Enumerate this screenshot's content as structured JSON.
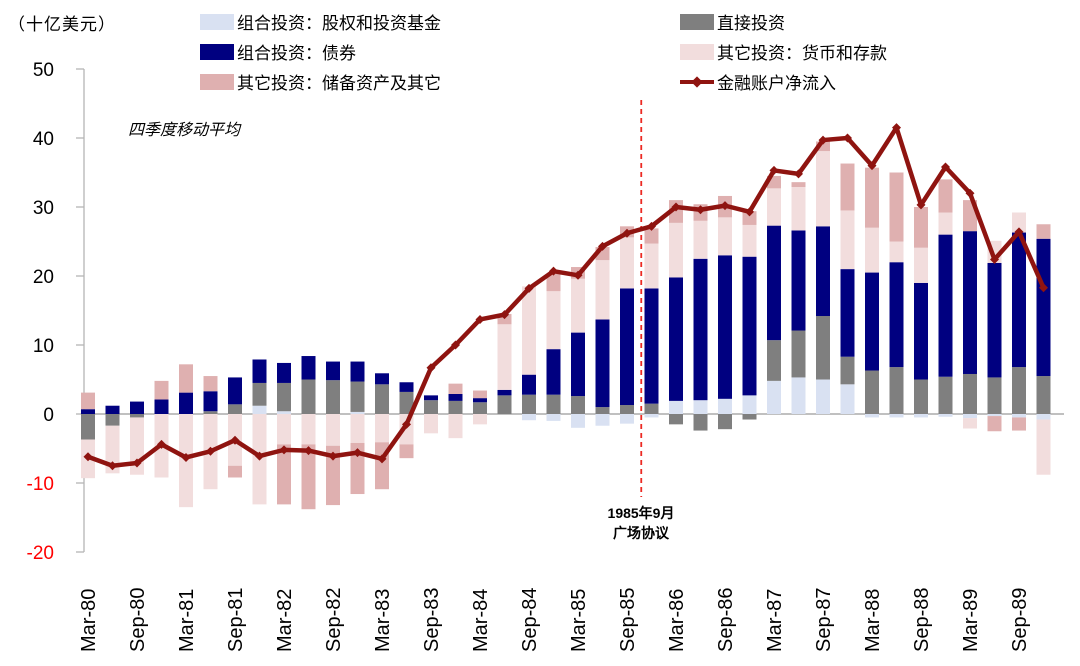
{
  "header": {
    "unit_label": "（十亿美元）"
  },
  "legend": {
    "items": [
      {
        "label": "组合投资：股权和投资基金",
        "color": "#d9e1f2",
        "type": "swatch"
      },
      {
        "label": "组合投资：债券",
        "color": "#000080",
        "type": "swatch"
      },
      {
        "label": "其它投资：储备资产及其它",
        "color": "#dfb0b0",
        "type": "swatch"
      },
      {
        "label": "直接投资",
        "color": "#7f7f7f",
        "type": "swatch"
      },
      {
        "label": "其它投资：货币和存款",
        "color": "#f2dddd",
        "type": "swatch"
      },
      {
        "label": "金融账户净流入",
        "color": "#8f1410",
        "type": "line"
      }
    ]
  },
  "annotations": {
    "moving_average": "四季度移动平均",
    "plaza_line1": "1985年9月",
    "plaza_line2": "广场协议",
    "plaza_event_position": "Sep-85",
    "dashed_line_color": "#ec2a23"
  },
  "y_axis": {
    "ticks": [
      50,
      40,
      30,
      20,
      10,
      0,
      -10,
      -20
    ],
    "positive_color": "#000000",
    "negative_color": "#ff0000"
  },
  "chart_data": {
    "type": "bar",
    "subtype": "stacked-bars-with-line",
    "title": "",
    "xlabel": "",
    "ylabel": "（十亿美元）",
    "ylim": [
      -20,
      50
    ],
    "grid": "zero-line-only",
    "legend_position": "top",
    "stack_order": [
      "equity",
      "direct",
      "bonds",
      "currency",
      "reserve"
    ],
    "series_names": {
      "equity": "组合投资：股权和投资基金",
      "bonds": "组合投资：债券",
      "reserve": "其它投资：储备资产及其它",
      "direct": "直接投资",
      "currency": "其它投资：货币和存款",
      "net": "金融账户净流入"
    },
    "series_colors": {
      "equity": "#d9e1f2",
      "bonds": "#000080",
      "reserve": "#dfb0b0",
      "direct": "#7f7f7f",
      "currency": "#f2dddd",
      "net": "#8f1410"
    },
    "x_tick_labels": [
      "Mar-80",
      "Sep-80",
      "Mar-81",
      "Sep-81",
      "Mar-82",
      "Sep-82",
      "Mar-83",
      "Sep-83",
      "Mar-84",
      "Sep-84",
      "Mar-85",
      "Sep-85",
      "Mar-86",
      "Sep-86",
      "Mar-87",
      "Sep-87",
      "Mar-88",
      "Sep-88",
      "Mar-89",
      "Sep-89"
    ],
    "quarters": [
      {
        "q": "Mar-80",
        "equity": 0,
        "bonds": 0.7,
        "direct": -3.7,
        "currency": -5.6,
        "reserve": 2.4,
        "net": -6.2
      },
      {
        "q": "Jun-80",
        "equity": 0,
        "bonds": 1.2,
        "direct": -1.7,
        "currency": -6.9,
        "reserve": 0,
        "net": -7.5
      },
      {
        "q": "Sep-80",
        "equity": 0,
        "bonds": 1.8,
        "direct": -0.5,
        "currency": -8.3,
        "reserve": 0,
        "net": -7.1
      },
      {
        "q": "Dec-80",
        "equity": 0,
        "bonds": 2.1,
        "direct": 0,
        "currency": -9.2,
        "reserve": 2.7,
        "net": -4.4
      },
      {
        "q": "Mar-81",
        "equity": 0,
        "bonds": 3.1,
        "direct": 0,
        "currency": -13.5,
        "reserve": 4.1,
        "net": -6.3
      },
      {
        "q": "Jun-81",
        "equity": 0,
        "bonds": 2.9,
        "direct": 0.4,
        "currency": -10.9,
        "reserve": 2.2,
        "net": -5.4
      },
      {
        "q": "Sep-81",
        "equity": 0,
        "bonds": 3.9,
        "direct": 1.4,
        "currency": -7.5,
        "reserve": -1.7,
        "net": -3.8
      },
      {
        "q": "Dec-81",
        "equity": 1.2,
        "bonds": 3.4,
        "direct": 3.3,
        "currency": -13.1,
        "reserve": 0,
        "net": -6.1
      },
      {
        "q": "Mar-82",
        "equity": 0.4,
        "bonds": 2.9,
        "direct": 4.1,
        "currency": -4.4,
        "reserve": -8.7,
        "net": -5.2
      },
      {
        "q": "Jun-82",
        "equity": 0,
        "bonds": 3.4,
        "direct": 5.0,
        "currency": -4.4,
        "reserve": -9.4,
        "net": -5.3
      },
      {
        "q": "Sep-82",
        "equity": 0,
        "bonds": 2.7,
        "direct": 4.9,
        "currency": -4.6,
        "reserve": -8.6,
        "net": -6.1
      },
      {
        "q": "Dec-82",
        "equity": 0.3,
        "bonds": 2.9,
        "direct": 4.4,
        "currency": -4.2,
        "reserve": -7.4,
        "net": -5.6
      },
      {
        "q": "Mar-83",
        "equity": 0,
        "bonds": 1.6,
        "direct": 4.3,
        "currency": -4.1,
        "reserve": -6.8,
        "net": -6.5
      },
      {
        "q": "Jun-83",
        "equity": 0,
        "bonds": 1.4,
        "direct": 3.2,
        "currency": -4.4,
        "reserve": -2.0,
        "net": -1.5
      },
      {
        "q": "Sep-83",
        "equity": 0,
        "bonds": 0.7,
        "direct": 2.0,
        "currency": -2.8,
        "reserve": 0,
        "net": 6.7
      },
      {
        "q": "Dec-83",
        "equity": 0,
        "bonds": 1.0,
        "direct": 1.9,
        "currency": -3.5,
        "reserve": 1.5,
        "net": 10.0
      },
      {
        "q": "Mar-84",
        "equity": 0,
        "bonds": 0.6,
        "direct": 1.7,
        "currency": -1.5,
        "reserve": 1.1,
        "net": 13.7
      },
      {
        "q": "Jun-84",
        "equity": 0,
        "bonds": 0.8,
        "direct": 2.7,
        "currency": 9.5,
        "reserve": 1.5,
        "net": 14.4
      },
      {
        "q": "Sep-84",
        "equity": -0.9,
        "bonds": 2.9,
        "direct": 2.8,
        "currency": 12.8,
        "reserve": 0,
        "net": 18.2
      },
      {
        "q": "Dec-84",
        "equity": -1.0,
        "bonds": 6.6,
        "direct": 2.8,
        "currency": 8.4,
        "reserve": 2.5,
        "net": 20.7
      },
      {
        "q": "Mar-85",
        "equity": -2.0,
        "bonds": 9.2,
        "direct": 2.6,
        "currency": 7.8,
        "reserve": 1.7,
        "net": 20.1
      },
      {
        "q": "Jun-85",
        "equity": -1.7,
        "bonds": 12.7,
        "direct": 1.0,
        "currency": 8.6,
        "reserve": 1.9,
        "net": 24.3
      },
      {
        "q": "Sep-85",
        "equity": -1.4,
        "bonds": 16.9,
        "direct": 1.3,
        "currency": 7.4,
        "reserve": 1.6,
        "net": 26.2
      },
      {
        "q": "Dec-85",
        "equity": -0.5,
        "bonds": 16.7,
        "direct": 1.5,
        "currency": 6.5,
        "reserve": 2.2,
        "net": 27.2
      },
      {
        "q": "Mar-86",
        "equity": 1.9,
        "bonds": 17.9,
        "direct": -1.5,
        "currency": 7.9,
        "reserve": 3.3,
        "net": 30.0
      },
      {
        "q": "Jun-86",
        "equity": 2.0,
        "bonds": 20.5,
        "direct": -2.4,
        "currency": 5.5,
        "reserve": 2.4,
        "net": 29.6
      },
      {
        "q": "Sep-86",
        "equity": 2.2,
        "bonds": 20.8,
        "direct": -2.2,
        "currency": 5.5,
        "reserve": 3.1,
        "net": 30.2
      },
      {
        "q": "Dec-86",
        "equity": 2.7,
        "bonds": 20.1,
        "direct": -0.8,
        "currency": 4.6,
        "reserve": 2.0,
        "net": 29.3
      },
      {
        "q": "Mar-87",
        "equity": 4.8,
        "bonds": 16.6,
        "direct": 5.9,
        "currency": 5.4,
        "reserve": 1.8,
        "net": 35.3
      },
      {
        "q": "Jun-87",
        "equity": 5.3,
        "bonds": 14.5,
        "direct": 6.8,
        "currency": 6.3,
        "reserve": 0.7,
        "net": 34.8
      },
      {
        "q": "Sep-87",
        "equity": 5.0,
        "bonds": 13.0,
        "direct": 9.2,
        "currency": 10.9,
        "reserve": 1.4,
        "net": 39.7
      },
      {
        "q": "Dec-87",
        "equity": 4.3,
        "bonds": 12.7,
        "direct": 4.0,
        "currency": 8.5,
        "reserve": 6.8,
        "net": 40.0
      },
      {
        "q": "Mar-88",
        "equity": -0.5,
        "bonds": 14.2,
        "direct": 6.3,
        "currency": 6.5,
        "reserve": 8.7,
        "net": 36.0
      },
      {
        "q": "Jun-88",
        "equity": -0.5,
        "bonds": 15.2,
        "direct": 6.8,
        "currency": 3.0,
        "reserve": 10.0,
        "net": 41.5
      },
      {
        "q": "Sep-88",
        "equity": -0.5,
        "bonds": 14.0,
        "direct": 5.0,
        "currency": 5.1,
        "reserve": 5.9,
        "net": 30.3
      },
      {
        "q": "Dec-88",
        "equity": -0.4,
        "bonds": 20.6,
        "direct": 5.4,
        "currency": 3.2,
        "reserve": 4.8,
        "net": 35.8
      },
      {
        "q": "Mar-89",
        "equity": -0.6,
        "bonds": 20.7,
        "direct": 5.8,
        "currency": -1.5,
        "reserve": 4.5,
        "net": 32.0
      },
      {
        "q": "Jun-89",
        "equity": -0.3,
        "bonds": 16.6,
        "direct": 5.3,
        "currency": 3.2,
        "reserve": -2.2,
        "net": 22.4
      },
      {
        "q": "Sep-89",
        "equity": -0.5,
        "bonds": 19.5,
        "direct": 6.8,
        "currency": 2.9,
        "reserve": -1.9,
        "net": 26.4
      },
      {
        "q": "Dec-89",
        "equity": -0.8,
        "bonds": 19.9,
        "direct": 5.5,
        "currency": -8.0,
        "reserve": 2.1,
        "net": 18.3
      }
    ]
  }
}
